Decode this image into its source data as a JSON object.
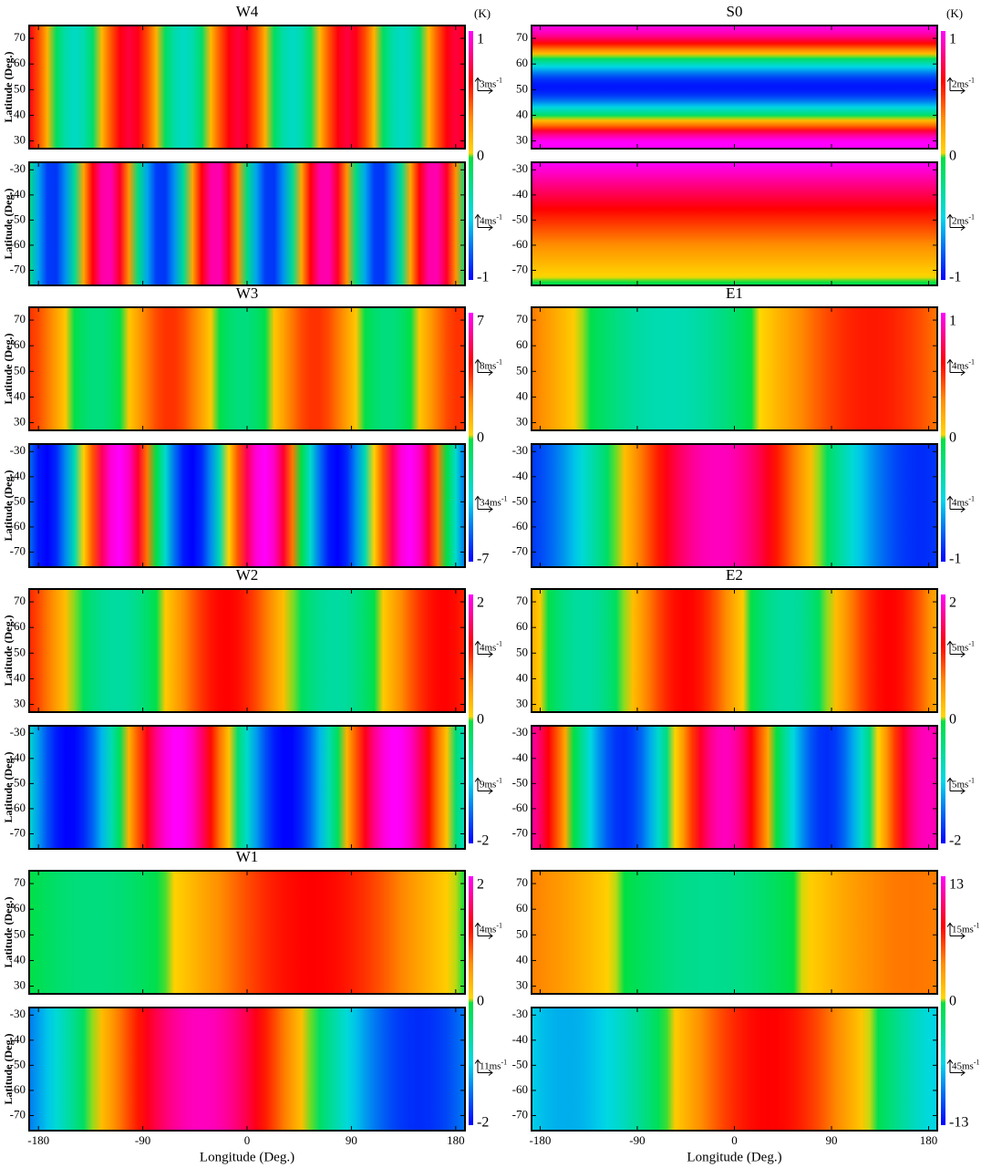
{
  "chart_data": {
    "type": "map-panels",
    "y_label": "Latitude (Deg.)",
    "x_label": "Longitude (Deg.)",
    "xlim": [
      -188,
      188
    ],
    "xticks": [
      -180,
      -90,
      0,
      90,
      180
    ],
    "ylim_north": [
      27,
      75
    ],
    "yticks_north": [
      70,
      60,
      50,
      40,
      30
    ],
    "ylim_south": [
      -76,
      -27
    ],
    "yticks_south": [
      -30,
      -40,
      -50,
      -60,
      -70
    ],
    "panels": [
      {
        "title": "W4",
        "unit": "(K)",
        "cmax": 1,
        "cmid": 0,
        "cmin": -1,
        "north_ref": {
          "text": "3ms",
          "sup": "-1"
        },
        "south_ref": {
          "text": "4ms",
          "sup": "-1"
        }
      },
      {
        "title": "S0",
        "unit": "(K)",
        "cmax": 1,
        "cmid": 0,
        "cmin": -1,
        "north_ref": {
          "text": "2ms",
          "sup": "-1"
        },
        "south_ref": {
          "text": "2ms",
          "sup": "-1"
        }
      },
      {
        "title": "W3",
        "cmax": 7,
        "cmid": 0,
        "cmin": -7,
        "north_ref": {
          "text": "8ms",
          "sup": "-1"
        },
        "south_ref": {
          "text": "34ms",
          "sup": "-1"
        }
      },
      {
        "title": "E1",
        "cmax": 1,
        "cmid": 0,
        "cmin": -1,
        "north_ref": {
          "text": "4ms",
          "sup": "-1"
        },
        "south_ref": {
          "text": "4ms",
          "sup": "-1"
        }
      },
      {
        "title": "W2",
        "cmax": 2,
        "cmid": 0,
        "cmin": -2,
        "north_ref": {
          "text": "4ms",
          "sup": "-1"
        },
        "south_ref": {
          "text": "9ms",
          "sup": "-1"
        }
      },
      {
        "title": "E2",
        "cmax": 2,
        "cmid": 0,
        "cmin": -2,
        "north_ref": {
          "text": "5ms",
          "sup": "-1"
        },
        "south_ref": {
          "text": "5ms",
          "sup": "-1"
        }
      },
      {
        "title": "W1",
        "cmax": 2,
        "cmid": 0,
        "cmin": -2,
        "north_ref": {
          "text": "4ms",
          "sup": "-1"
        },
        "south_ref": {
          "text": "11ms",
          "sup": "-1"
        }
      },
      {
        "cmax": 13,
        "cmid": 0,
        "cmin": -13,
        "north_ref": {
          "text": "15ms",
          "sup": "-1"
        },
        "south_ref": {
          "text": "45ms",
          "sup": "-1"
        }
      }
    ]
  }
}
